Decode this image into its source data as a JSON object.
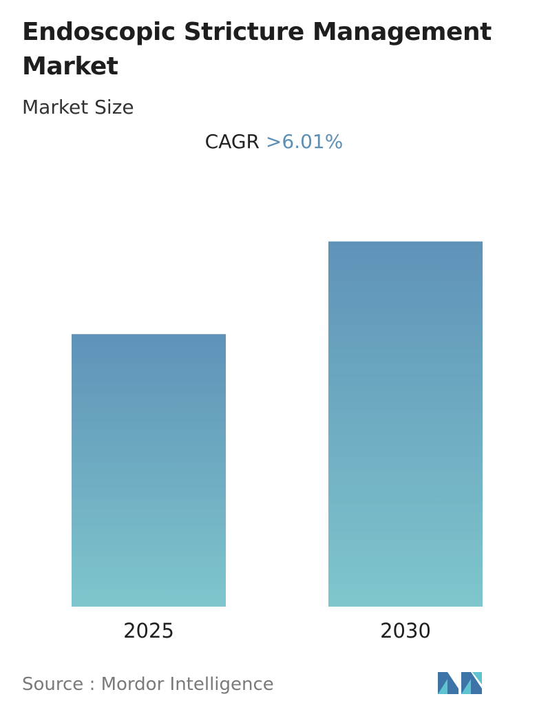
{
  "title": "Endoscopic Stricture Management Market",
  "subtitle": "Market Size",
  "cagr": {
    "label": "CAGR",
    "value": ">6.01%"
  },
  "source": {
    "text": "Source :  Mordor Intelligence"
  },
  "logo": {
    "icon": "mordor-intelligence-logo-icon",
    "color_dark": "#3c74a8",
    "color_light": "#5ec3cf"
  },
  "colors": {
    "bar_top": "#5f92b8",
    "bar_bottom": "#7ec6cc",
    "cagr_value": "#5d8fb5"
  },
  "chart_data": {
    "type": "bar",
    "categories": [
      "2025",
      "2030"
    ],
    "values": [
      1.0,
      1.34
    ],
    "xlabel": "",
    "ylabel": "",
    "ylim": [
      0,
      1.42
    ],
    "grid": false,
    "axis_visible": false,
    "legend": "none"
  }
}
